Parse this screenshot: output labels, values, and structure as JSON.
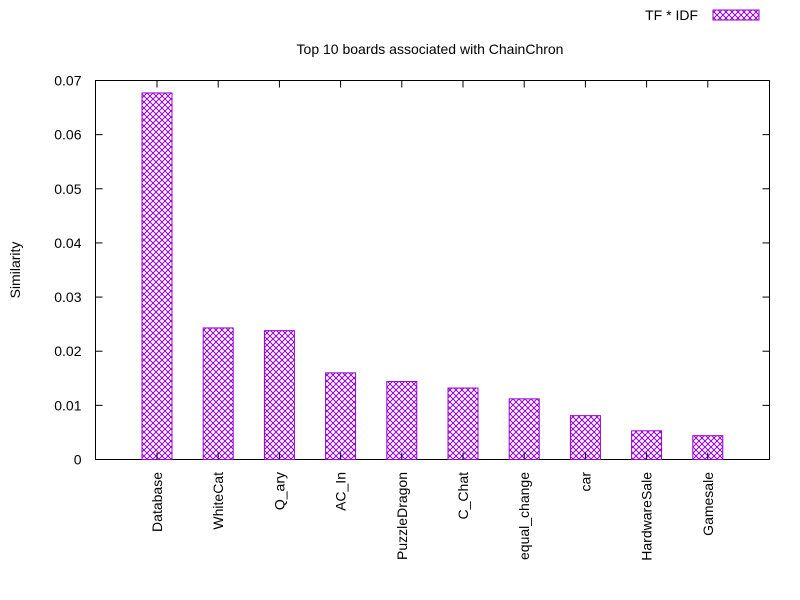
{
  "chart_data": {
    "type": "bar",
    "title": "Top 10 boards associated with ChainChron",
    "xlabel": "",
    "ylabel": "Similarity",
    "ylim": [
      0,
      0.07
    ],
    "yticks": [
      "0",
      "0.01",
      "0.02",
      "0.03",
      "0.04",
      "0.05",
      "0.06",
      "0.07"
    ],
    "ytick_values": [
      0,
      0.01,
      0.02,
      0.03,
      0.04,
      0.05,
      0.06,
      0.07
    ],
    "categories": [
      "Database",
      "WhiteCat",
      "Q_ary",
      "AC_In",
      "PuzzleDragon",
      "C_Chat",
      "equal_change",
      "car",
      "HardwareSale",
      "Gamesale"
    ],
    "series": [
      {
        "name": "TF * IDF",
        "values": [
          0.0677,
          0.0243,
          0.0238,
          0.016,
          0.0144,
          0.0132,
          0.0112,
          0.0081,
          0.0053,
          0.0044
        ]
      }
    ],
    "legend_position": "top-right",
    "bar_color": "#9400d3",
    "grid": false
  }
}
